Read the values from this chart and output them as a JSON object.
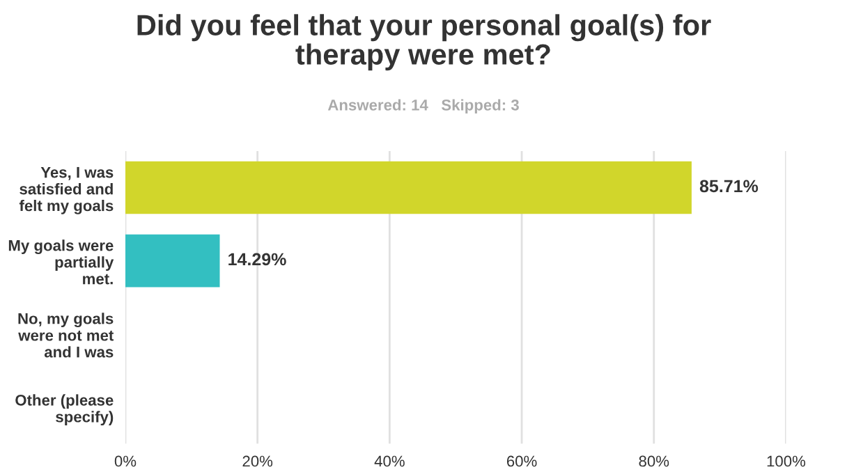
{
  "chart_data": {
    "type": "bar",
    "orientation": "horizontal",
    "title": "Did you feel that your personal goal(s) for\ntherapy were met?",
    "subtitle": "Answered: 14   Skipped: 3",
    "categories": [
      "Yes, I was\nsatisfied and\nfelt my goals",
      "My goals were\npartially\nmet.",
      "No, my goals\nwere not met\nand I was",
      "Other (please\nspecify)"
    ],
    "values": [
      85.71,
      14.29,
      0,
      0
    ],
    "colors": [
      "#d1d62b",
      "#33bfc1",
      "#e8a33b",
      "#8a6fb3"
    ],
    "value_labels": [
      "85.71%",
      "14.29%",
      null,
      null
    ],
    "xlim": [
      0,
      100
    ],
    "xticks": [
      {
        "value": 0,
        "label": "0%"
      },
      {
        "value": 20,
        "label": "20%"
      },
      {
        "value": 40,
        "label": "40%"
      },
      {
        "value": 60,
        "label": "60%"
      },
      {
        "value": 80,
        "label": "80%"
      },
      {
        "value": 100,
        "label": "100%"
      }
    ],
    "grid": "x",
    "legend": false
  }
}
